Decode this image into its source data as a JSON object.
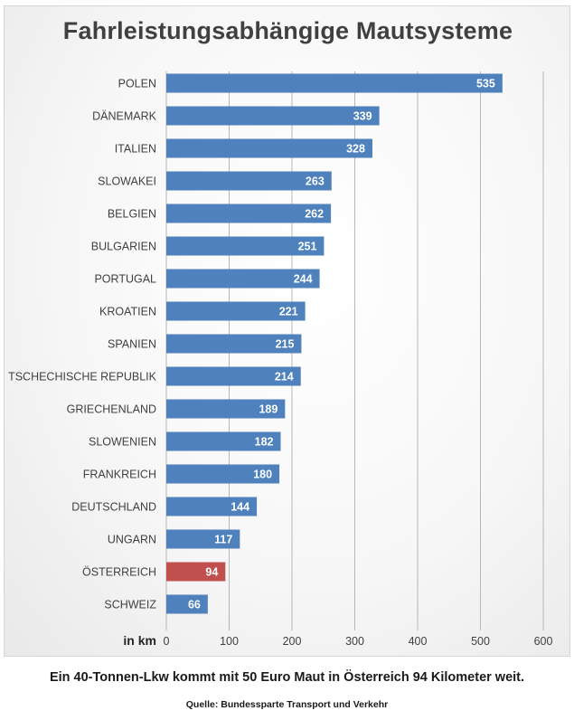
{
  "chart_data": {
    "type": "bar",
    "orientation": "horizontal",
    "title": "Fahrleistungsabhängige Mautsysteme",
    "xlabel": "in km",
    "ylabel": "",
    "categories": [
      "POLEN",
      "DÄNEMARK",
      "ITALIEN",
      "SLOWAKEI",
      "BELGIEN",
      "BULGARIEN",
      "PORTUGAL",
      "KROATIEN",
      "SPANIEN",
      "TSCHECHISCHE REPUBLIK",
      "GRIECHENLAND",
      "SLOWENIEN",
      "FRANKREICH",
      "DEUTSCHLAND",
      "UNGARN",
      "ÖSTERREICH",
      "SCHWEIZ"
    ],
    "values": [
      535,
      339,
      328,
      263,
      262,
      251,
      244,
      221,
      215,
      214,
      189,
      182,
      180,
      144,
      117,
      94,
      66
    ],
    "data_labels": [
      "535",
      "339",
      "328",
      "263",
      "262",
      "251",
      "244",
      "221",
      "215",
      "214",
      "189",
      "182",
      "180",
      "144",
      "117",
      "94",
      "66"
    ],
    "xlim": [
      0,
      600
    ],
    "xticks": [
      0,
      100,
      200,
      300,
      400,
      500,
      600
    ],
    "tick_labels": [
      "0",
      "100",
      "200",
      "300",
      "400",
      "500",
      "600"
    ],
    "grid": true,
    "legend": "none",
    "colors": {
      "bar": "#4f81bd",
      "highlight": "#c0504d"
    },
    "highlight_category": "ÖSTERREICH"
  },
  "caption": "Ein 40-Tonnen-Lkw kommt mit 50 Euro Maut in Österreich 94 Kilometer weit.",
  "source": "Quelle: Bundessparte Transport und Verkehr"
}
